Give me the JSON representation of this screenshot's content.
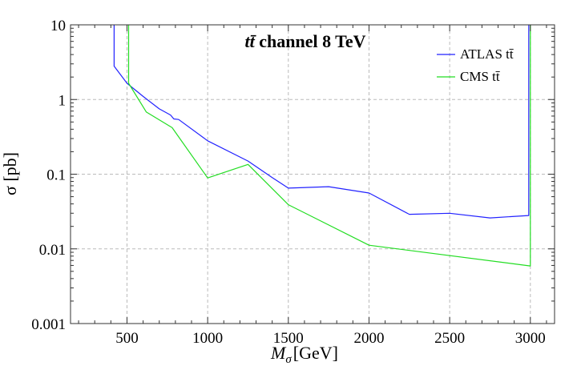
{
  "chart_data": {
    "type": "line",
    "title": "tt̄ channel 8 TeV",
    "title_parts": {
      "lead": "t",
      "bar": "t̄",
      "rest": " channel 8 TeV"
    },
    "xlabel": "M",
    "xlabel_sub": "σ",
    "xlabel_unit": "[GeV]",
    "ylabel": "σ [pb]",
    "xlim": [
      150,
      3150
    ],
    "ylim": [
      0.001,
      10
    ],
    "yscale": "log",
    "grid": true,
    "legend_position": "top-right",
    "x_ticks": [
      500,
      1000,
      1500,
      2000,
      2500,
      3000
    ],
    "x_tick_labels": [
      "500",
      "1000",
      "1500",
      "2000",
      "2500",
      "3000"
    ],
    "y_ticks": [
      0.001,
      0.01,
      0.1,
      1,
      10
    ],
    "y_tick_labels": [
      "0.001",
      "0.01",
      "0.1",
      "1",
      "10"
    ],
    "series": [
      {
        "name": "ATLAS tt̄",
        "color": "#2222ff",
        "points": [
          [
            420,
            12
          ],
          [
            420,
            2.8
          ],
          [
            500,
            1.65
          ],
          [
            600,
            1.1
          ],
          [
            700,
            0.75
          ],
          [
            770,
            0.62
          ],
          [
            790,
            0.55
          ],
          [
            820,
            0.54
          ],
          [
            1000,
            0.28
          ],
          [
            1250,
            0.15
          ],
          [
            1400,
            0.09
          ],
          [
            1500,
            0.065
          ],
          [
            1750,
            0.068
          ],
          [
            2000,
            0.056
          ],
          [
            2250,
            0.029
          ],
          [
            2500,
            0.03
          ],
          [
            2750,
            0.026
          ],
          [
            2990,
            0.028
          ],
          [
            2990,
            12
          ]
        ]
      },
      {
        "name": "CMS tt̄",
        "color": "#22dd22",
        "points": [
          [
            510,
            12
          ],
          [
            510,
            1.65
          ],
          [
            620,
            0.68
          ],
          [
            780,
            0.42
          ],
          [
            1000,
            0.089
          ],
          [
            1250,
            0.135
          ],
          [
            1500,
            0.039
          ],
          [
            2000,
            0.0112
          ],
          [
            3000,
            0.0059
          ],
          [
            3000,
            12
          ]
        ]
      }
    ]
  }
}
